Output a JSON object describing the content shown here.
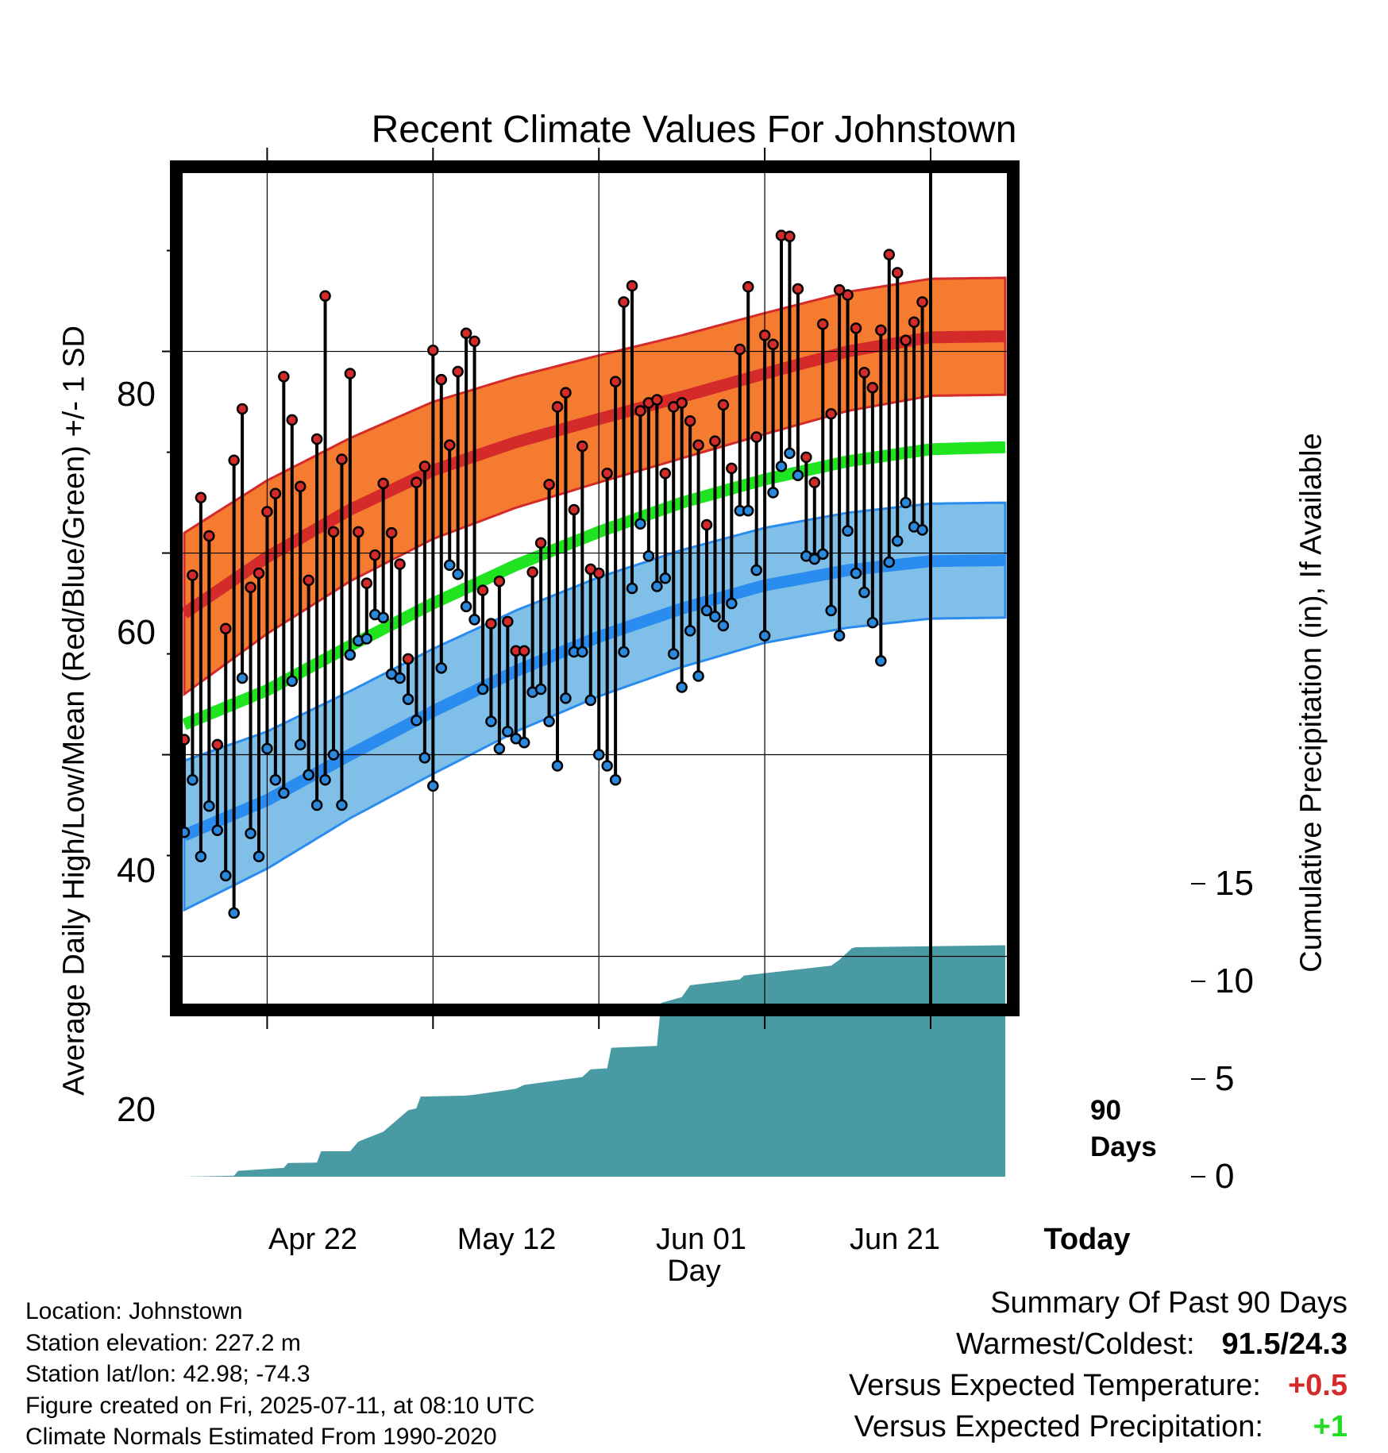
{
  "chart_data": {
    "type": "line",
    "title": "Recent Climate Values For Johnstown",
    "xlabel": "Day",
    "ylabel": "Average Daily High/Low/Mean (Red/Blue/Green) +/- 1 SD",
    "y2label": "Cumulative Precipitation (in), If Available",
    "ylim": [
      15,
      98
    ],
    "y2lim": [
      0,
      25
    ],
    "grid": true,
    "x_tick_labels": [
      "Apr 22",
      "May 12",
      "Jun 01",
      "Jun 21",
      "Today"
    ],
    "y_tick_labels": [
      "20",
      "40",
      "60",
      "80"
    ],
    "y2_tick_labels": [
      "0",
      "5",
      "10",
      "15"
    ],
    "today_annotation": "90 Days",
    "colors": {
      "high_band": "#F47B30",
      "high_line": "#D42A2A",
      "mean_line": "#1FE41F",
      "low_band": "#80BFE8",
      "low_line": "#2A8CEE",
      "precip": "#4A9AA4",
      "high_dot": "#D42A2A",
      "low_dot": "#2A88DD"
    },
    "normals": {
      "days": [
        0,
        10,
        20,
        30,
        40,
        50,
        60,
        70,
        80,
        90,
        99
      ],
      "high_mean": [
        54,
        59.6,
        64.3,
        68.2,
        71,
        73.3,
        75.5,
        77.8,
        80,
        81.4,
        81.5
      ],
      "high_sd": [
        8,
        7.6,
        7.1,
        6.8,
        6.5,
        6.3,
        6.1,
        6,
        5.9,
        5.8,
        5.8
      ],
      "avg_mean": [
        43,
        46.4,
        50.8,
        55,
        58.8,
        62.1,
        65,
        67.3,
        69.1,
        70.3,
        70.5
      ],
      "low_mean": [
        32,
        35.5,
        40,
        44.3,
        48.3,
        51.7,
        54.5,
        56.8,
        58.3,
        59.2,
        59.3
      ],
      "low_sd": [
        7.4,
        6.8,
        6.3,
        6.2,
        6,
        5.9,
        5.8,
        5.7,
        5.7,
        5.7,
        5.7
      ]
    },
    "series": [
      {
        "name": "High",
        "values": [
          41.5,
          57.8,
          65.5,
          61.7,
          41,
          52.5,
          69.2,
          74.3,
          56.6,
          58,
          64.1,
          65.9,
          77.5,
          73.2,
          66.6,
          57.3,
          71.3,
          85.5,
          62.1,
          69.3,
          77.8,
          62.1,
          57,
          59.8,
          66.9,
          62,
          58.9,
          49.5,
          67,
          68.6,
          80.1,
          77.2,
          70.7,
          78,
          81.8,
          81,
          56.3,
          53,
          57.2,
          53.2,
          50.3,
          50.3,
          58.1,
          61,
          66.8,
          74.5,
          75.9,
          64.3,
          70.6,
          58.4,
          58,
          67.9,
          77,
          84.9,
          86.5,
          74.1,
          74.9,
          75.2,
          67.9,
          74.5,
          74.9,
          73.1,
          70.7,
          62.8,
          71.1,
          74.7,
          68.4,
          80.2,
          86.4,
          71.5,
          81.6,
          80.7,
          91.5,
          91.4,
          86.2,
          69.5,
          67,
          82.7,
          73.8,
          86.1,
          85.6,
          82.3,
          77.9,
          76.4,
          82.1,
          89.6,
          87.8,
          81.1,
          82.9,
          84.9
        ],
        "color": "#D42A2A"
      },
      {
        "name": "Low",
        "values": [
          32.3,
          37.5,
          29.9,
          34.9,
          32.5,
          28,
          24.3,
          47.6,
          32.2,
          29.9,
          40.6,
          37.5,
          36.2,
          47.3,
          41,
          38,
          35,
          37.5,
          40,
          35,
          49.9,
          51.3,
          51.5,
          53.9,
          53.6,
          48,
          47.6,
          45.5,
          43.4,
          39.7,
          36.9,
          48.6,
          58.8,
          57.9,
          54.7,
          53.4,
          46.5,
          43.3,
          40.6,
          42.3,
          41.6,
          41.2,
          46.2,
          46.5,
          43.3,
          38.9,
          45.6,
          50.2,
          50.2,
          45.4,
          40,
          38.9,
          37.5,
          50.2,
          56.5,
          62.9,
          59.7,
          56.7,
          57.5,
          50,
          46.7,
          52.3,
          47.8,
          54.3,
          53.7,
          52.8,
          55,
          64.2,
          64.2,
          58.3,
          51.8,
          66,
          68.6,
          69.9,
          67.7,
          59.7,
          59.4,
          59.9,
          54.3,
          51.8,
          62.2,
          58,
          56.1,
          53.1,
          49.3,
          59.1,
          61.2,
          65,
          62.6,
          62.3
        ],
        "color": "#2A88DD"
      },
      {
        "name": "Cumulative Precipitation",
        "x": [
          0,
          6,
          6.5,
          12,
          12.5,
          16,
          16.5,
          20,
          21,
          24,
          27,
          28,
          28.5,
          34,
          35,
          40,
          41,
          48,
          49,
          51,
          51.5,
          57,
          57.5,
          60,
          61,
          67,
          67.5,
          78,
          79,
          80.5,
          81,
          99
        ],
        "values": [
          0,
          0.05,
          0.3,
          0.45,
          0.7,
          0.72,
          1.3,
          1.3,
          1.8,
          2.3,
          3.4,
          3.5,
          4.1,
          4.15,
          4.2,
          4.5,
          4.7,
          5.1,
          5.5,
          5.55,
          6.6,
          6.7,
          8.9,
          9.2,
          9.8,
          10.1,
          10.3,
          10.8,
          11.1,
          11.7,
          11.75,
          11.85
        ]
      }
    ]
  },
  "meta": {
    "location": "Location: Johnstown",
    "elevation": "Station elevation: 227.2 m",
    "latlon": "Station lat/lon: 42.98; -74.3",
    "created": "Figure created on Fri, 2025-07-11, at 08:10 UTC",
    "normals": "Climate Normals Estimated From 1990-2020"
  },
  "summary": {
    "title": "Summary Of Past 90 Days",
    "warmest_coldest_label": "Warmest/Coldest:",
    "warmest_coldest_value": "91.5/24.3",
    "temp_label": "Versus Expected Temperature:",
    "temp_value": "+0.5",
    "temp_color": "#D42A2A",
    "precip_label": "Versus Expected Precipitation:",
    "precip_value": "+1",
    "precip_color": "#22DD22"
  }
}
